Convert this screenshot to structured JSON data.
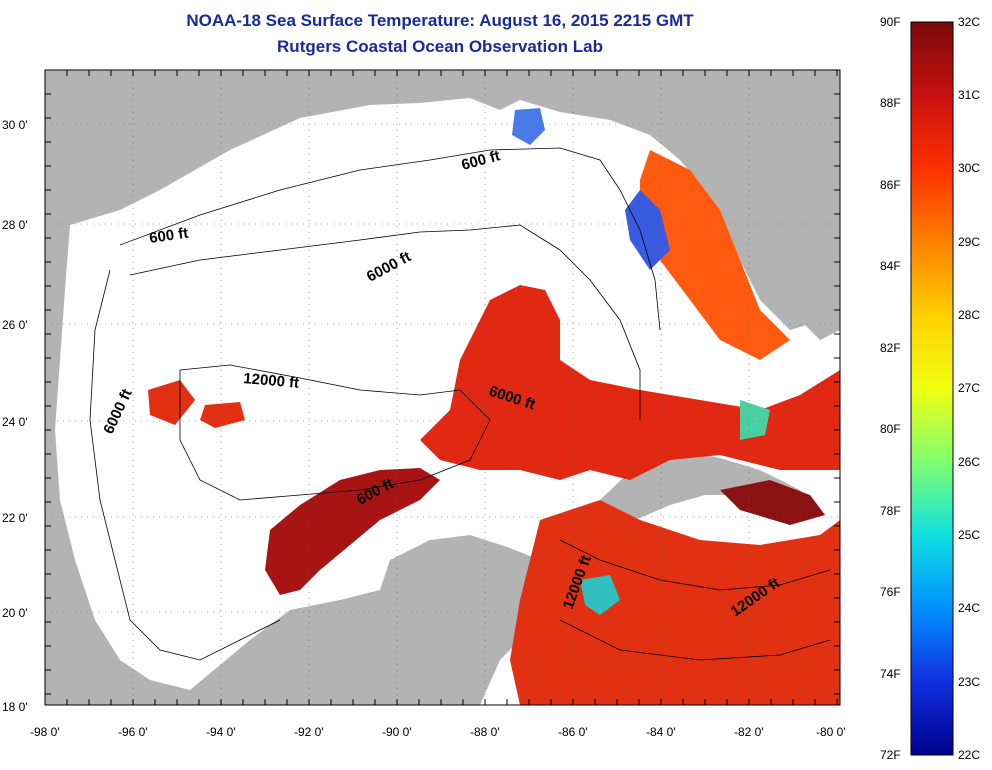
{
  "header": {
    "title": "NOAA-18 Sea Surface Temperature:  August 16, 2015 2215 GMT",
    "subtitle": "Rutgers Coastal Ocean Observation Lab"
  },
  "map": {
    "lon_labels": [
      "-98 0'",
      "-96 0'",
      "-94 0'",
      "-92 0'",
      "-90 0'",
      "-88 0'",
      "-86 0'",
      "-84 0'",
      "-82 0'",
      "-80 0'"
    ],
    "lat_labels": [
      "30 0'",
      "28 0'",
      "26 0'",
      "24 0'",
      "22 0'",
      "20 0'",
      "18 0'"
    ],
    "contour_labels": {
      "c600_north": "600 ft",
      "c600_west": "600 ft",
      "c600_yucatan": "600 ft",
      "c6000_north": "6000 ft",
      "c6000_west": "6000 ft",
      "c6000_east": "6000 ft",
      "c12000_west": "12000 ft",
      "c12000_cuba": "12000 ft",
      "c12000_carib": "12000 ft"
    },
    "colors": {
      "land": "#b3b3b3",
      "cloud": "#ffffff",
      "sst_hot": "#8b1010",
      "sst_warm": "#e02010",
      "sst_mid": "#ff6010",
      "sst_cool": "#3050e0"
    }
  },
  "colorbar": {
    "fahrenheit_labels": [
      "90F",
      "88F",
      "86F",
      "84F",
      "82F",
      "80F",
      "78F",
      "76F",
      "74F",
      "72F"
    ],
    "celsius_labels": [
      "32C",
      "31C",
      "30C",
      "29C",
      "28C",
      "27C",
      "26C",
      "25C",
      "24C",
      "23C",
      "22C"
    ],
    "gradient_stops": [
      "#7a0a0a",
      "#c81010",
      "#ff3000",
      "#ff8000",
      "#ffd000",
      "#f0ff10",
      "#80ff70",
      "#10e0e0",
      "#0090ff",
      "#1030e0",
      "#000090"
    ]
  }
}
